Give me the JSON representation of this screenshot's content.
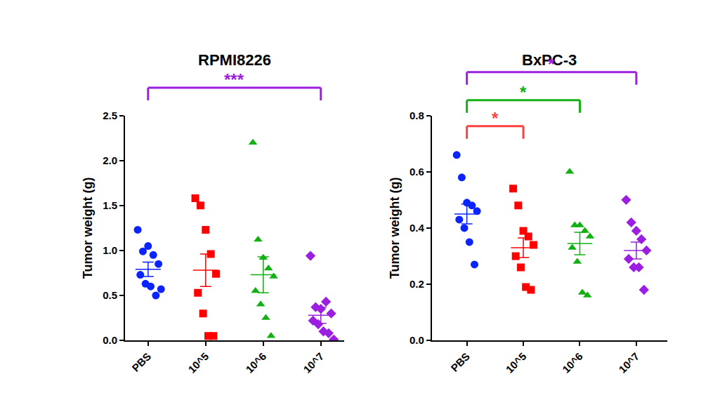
{
  "chart_data": [
    {
      "type": "scatter",
      "title": "RPMI8226",
      "y_label": "Tumor weight (g)",
      "categories": [
        "PBS",
        "10^5",
        "10^6",
        "10^7"
      ],
      "groups": [
        {
          "color": "#0b24fb",
          "marker": "circle",
          "values": [
            1.23,
            0.99,
            1.05,
            0.95,
            0.85,
            0.73,
            0.63,
            0.6,
            0.5,
            0.57
          ],
          "mean": 0.79,
          "sem": 0.08
        },
        {
          "color": "#ff0000",
          "marker": "square",
          "values": [
            1.58,
            1.5,
            1.23,
            0.96,
            0.74,
            0.53,
            0.3,
            0.05,
            0.05
          ],
          "mean": 0.78,
          "sem": 0.18
        },
        {
          "color": "#12b012",
          "marker": "triangle-up",
          "values": [
            2.2,
            1.12,
            0.92,
            0.8,
            0.71,
            0.55,
            0.4,
            0.25,
            0.05
          ],
          "mean": 0.73,
          "sem": 0.2
        },
        {
          "color": "#9b1fe0",
          "marker": "diamond",
          "values": [
            0.94,
            0.37,
            0.35,
            0.43,
            0.3,
            0.22,
            0.18,
            0.1,
            0.08,
            0.01
          ],
          "mean": 0.28,
          "sem": 0.09
        }
      ],
      "ylim": [
        0,
        2.5
      ],
      "yticks": [
        {
          "value": 0,
          "label": "0.0"
        },
        0.5,
        {
          "value": 1,
          "label": "1.0"
        },
        1.5,
        {
          "value": 2,
          "label": "2.0"
        },
        2.5
      ],
      "grid": false,
      "brackets": [
        {
          "from": "PBS",
          "to": "10^7",
          "label": "***",
          "color": "#9b1fe0",
          "y": 2.81
        }
      ]
    },
    {
      "type": "scatter",
      "title": "BxPC-3",
      "y_label": "Tumor weight (g)",
      "categories": [
        "PBS",
        "10^5",
        "10^6",
        "10^7"
      ],
      "groups": [
        {
          "color": "#0b24fb",
          "marker": "circle",
          "values": [
            0.66,
            0.58,
            0.49,
            0.48,
            0.46,
            0.43,
            0.4,
            0.35,
            0.27
          ],
          "mean": 0.45,
          "sem": 0.035
        },
        {
          "color": "#ff0000",
          "marker": "square",
          "values": [
            0.54,
            0.48,
            0.39,
            0.37,
            0.34,
            0.3,
            0.26,
            0.19,
            0.18
          ],
          "mean": 0.33,
          "sem": 0.035
        },
        {
          "color": "#12b012",
          "marker": "triangle-up",
          "values": [
            0.6,
            0.41,
            0.41,
            0.39,
            0.37,
            0.33,
            0.28,
            0.17,
            0.16
          ],
          "mean": 0.345,
          "sem": 0.04
        },
        {
          "color": "#9b1fe0",
          "marker": "diamond",
          "values": [
            0.5,
            0.42,
            0.39,
            0.36,
            0.32,
            0.29,
            0.26,
            0.26,
            0.18
          ],
          "mean": 0.32,
          "sem": 0.03
        }
      ],
      "ylim": [
        0,
        0.8
      ],
      "yticks": [
        {
          "value": 0,
          "label": "0.0"
        },
        0.2,
        0.4,
        0.6,
        0.8
      ],
      "grid": false,
      "brackets": [
        {
          "from": "PBS",
          "to": "10^7",
          "label": "*",
          "color": "#9b1fe0",
          "y": 0.955
        },
        {
          "from": "PBS",
          "to": "10^6",
          "label": "*",
          "color": "#12b012",
          "y": 0.855
        },
        {
          "from": "PBS",
          "to": "10^5",
          "label": "*",
          "color": "#ff4040",
          "y": 0.7625
        }
      ]
    }
  ]
}
